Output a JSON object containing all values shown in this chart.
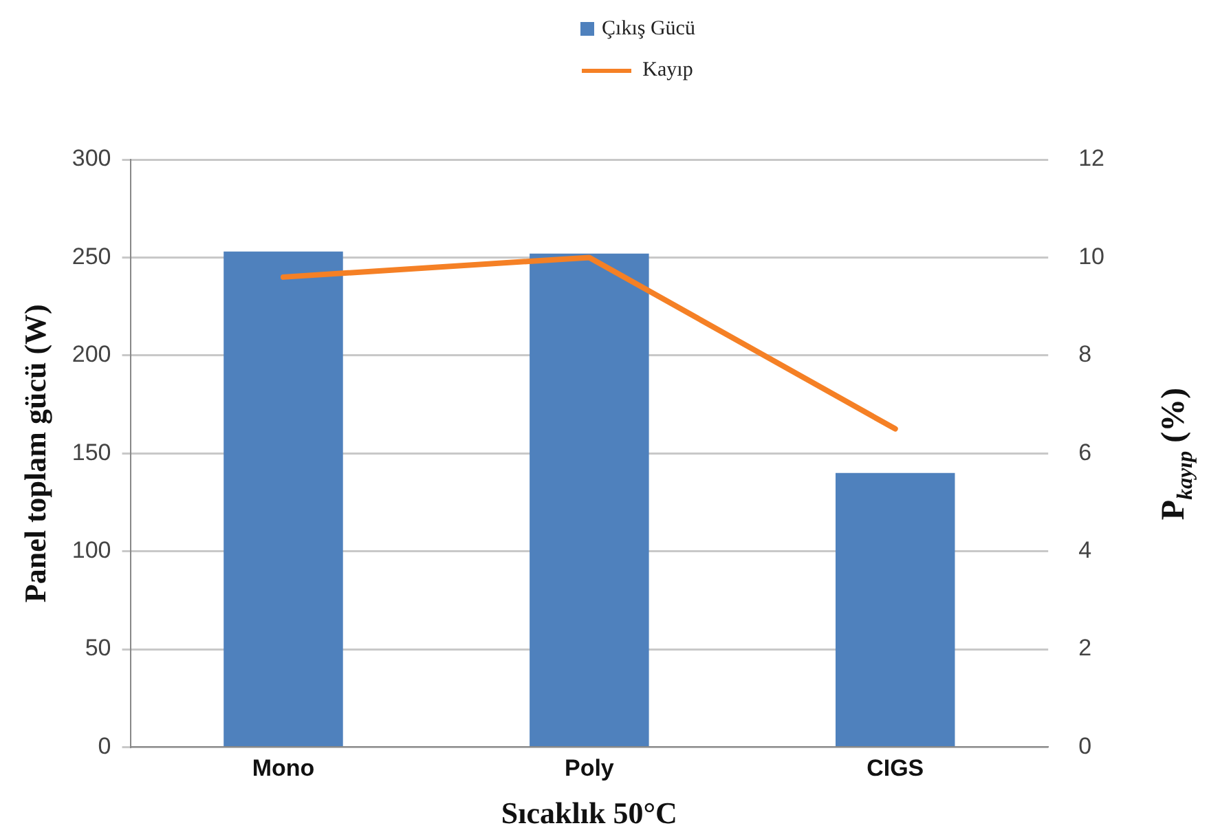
{
  "chart_data": {
    "type": "bar",
    "categories": [
      "Mono",
      "Poly",
      "CIGS"
    ],
    "series": [
      {
        "name": "Çıkış Gücü",
        "color": "#4f81bd",
        "values": [
          253,
          252,
          140
        ]
      },
      {
        "name": "Kayıp",
        "type": "line",
        "axis": "y2",
        "color": "#f58025",
        "values": [
          9.6,
          10.0,
          6.5
        ]
      }
    ],
    "xlabel": "Sıcaklık 50°C",
    "ylabel": "Panel toplam gücü (W)",
    "y2label": "P$_{kayıp}$ (%)",
    "ylim": [
      0,
      300
    ],
    "yticks": [
      0,
      50,
      100,
      150,
      200,
      250,
      300
    ],
    "y2lim": [
      0,
      12
    ],
    "y2ticks": [
      0,
      2,
      4,
      6,
      8,
      10,
      12
    ],
    "grid": "y",
    "legend": "top",
    "marker": "none"
  }
}
